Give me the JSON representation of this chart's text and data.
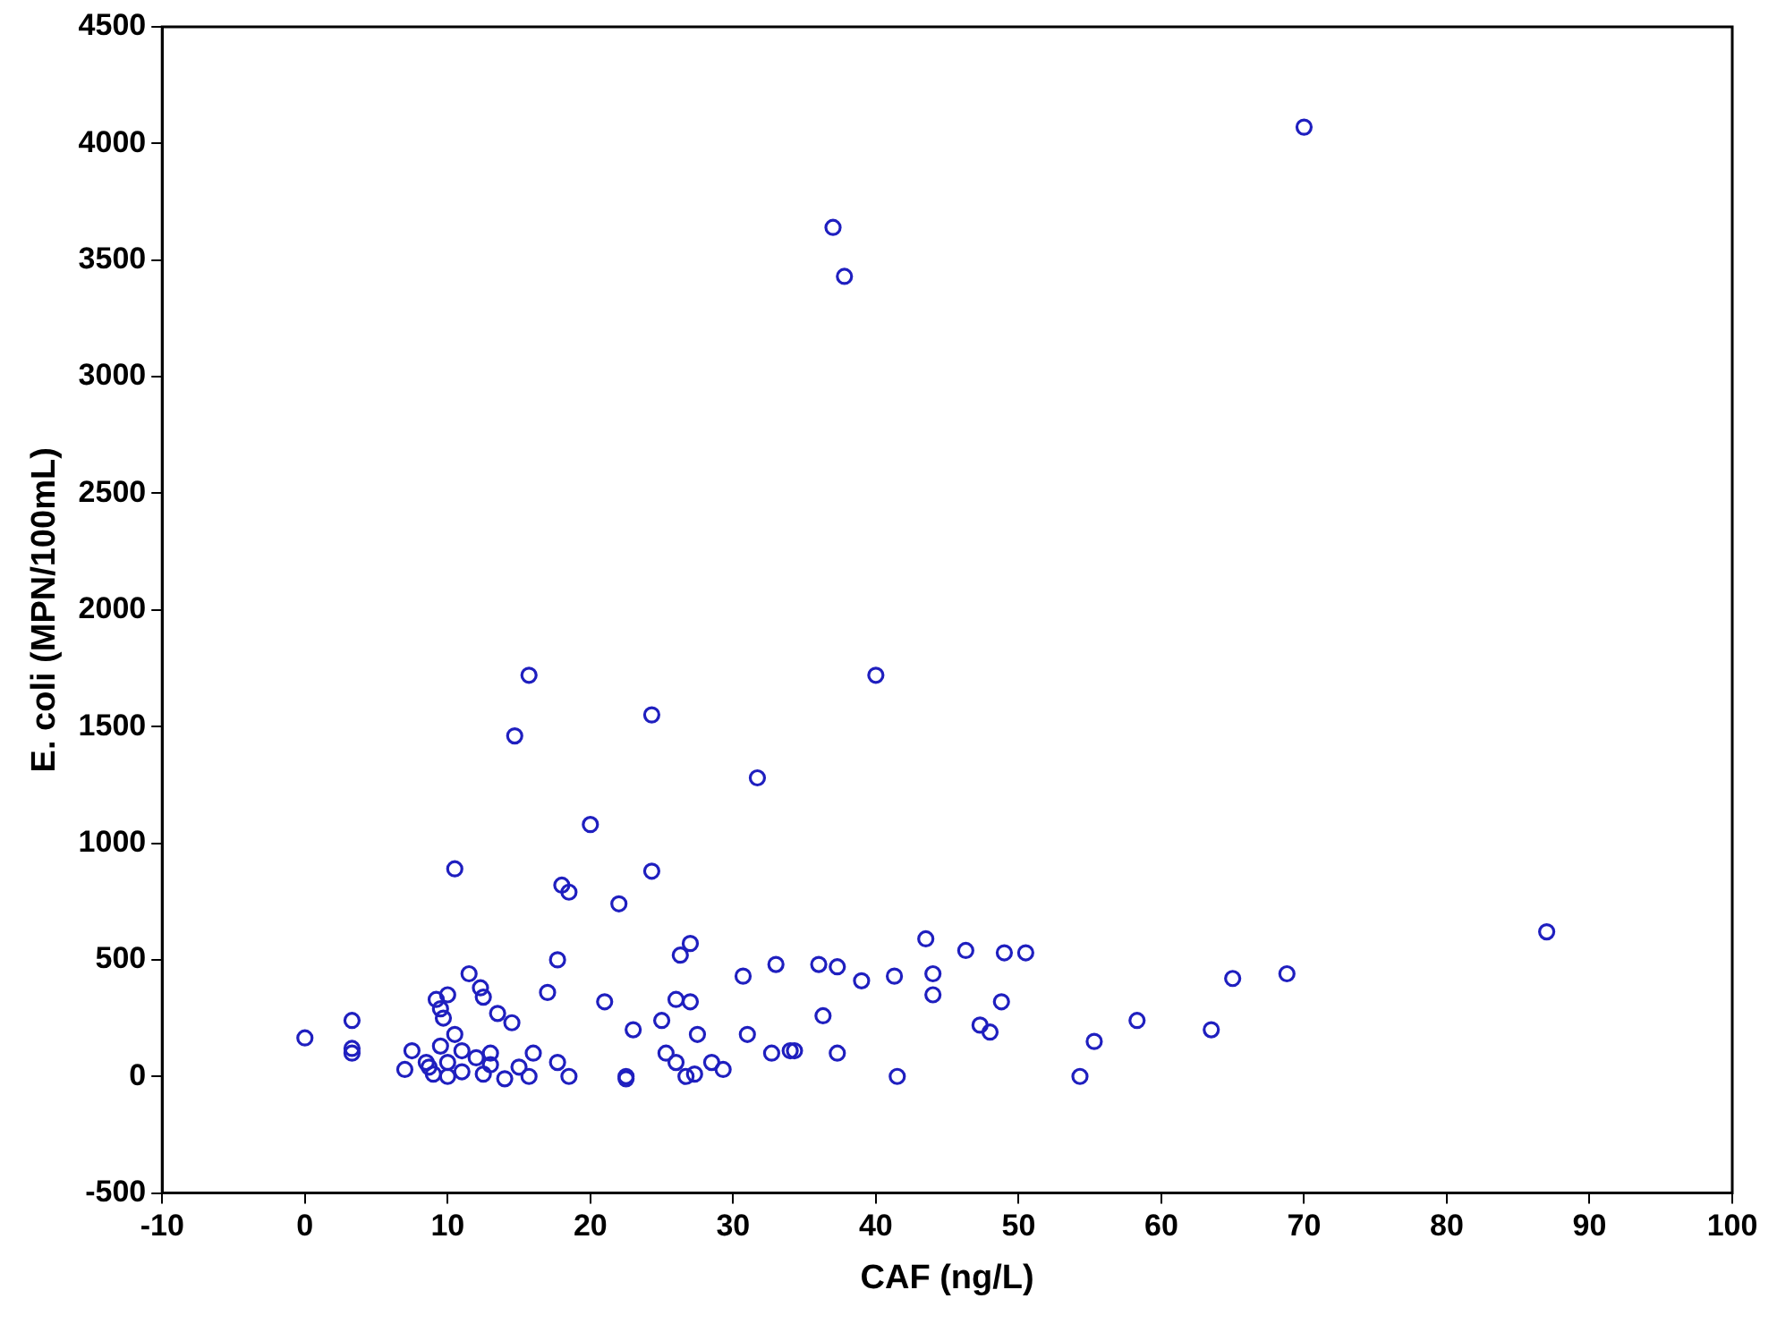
{
  "chart_data": {
    "type": "scatter",
    "xlabel": "CAF (ng/L)",
    "ylabel": "E. coli (MPN/100mL)",
    "xlim": [
      -10,
      100
    ],
    "xticks": [
      -10,
      0,
      10,
      20,
      30,
      40,
      50,
      60,
      70,
      80,
      90,
      100
    ],
    "ylim": [
      -500,
      4500
    ],
    "yticks": [
      -500,
      0,
      500,
      1000,
      1500,
      2000,
      2500,
      3000,
      3500,
      4000,
      4500
    ],
    "grid": false,
    "legend": false,
    "marker": "circle",
    "series": [
      {
        "color": "#1f1fbf",
        "x": [
          0,
          3.3,
          3.3,
          3.3,
          7,
          7.5,
          8.5,
          8.7,
          9,
          9.2,
          9.5,
          9.7,
          9.5,
          10,
          10,
          10,
          10.5,
          10.5,
          11,
          11,
          11.5,
          12,
          12.3,
          12.5,
          12.5,
          13,
          13,
          13.5,
          14,
          14.5,
          14.7,
          15,
          15.7,
          15.7,
          16,
          17,
          17.7,
          17.7,
          18,
          18.5,
          18.5,
          20,
          21,
          22,
          22.5,
          22.5,
          23,
          24.3,
          24.3,
          25,
          25.3,
          26,
          26,
          26.3,
          26.7,
          27,
          27,
          27.3,
          27.5,
          28.5,
          29.3,
          30.7,
          31,
          31.7,
          32.7,
          33,
          34,
          34.3,
          36,
          36.3,
          37,
          37.3,
          37.3,
          37.8,
          39,
          40,
          41.3,
          41.5,
          43.5,
          44,
          44,
          46.3,
          47.3,
          48,
          48.8,
          49,
          50.5,
          54.3,
          55.3,
          58.3,
          63.5,
          65,
          68.8,
          70,
          87
        ],
        "values": [
          165,
          240,
          120,
          100,
          30,
          110,
          60,
          40,
          10,
          330,
          290,
          250,
          130,
          350,
          60,
          0,
          890,
          180,
          110,
          20,
          440,
          80,
          380,
          340,
          10,
          100,
          50,
          270,
          -10,
          230,
          1460,
          40,
          1720,
          0,
          100,
          360,
          500,
          60,
          820,
          790,
          0,
          1080,
          320,
          740,
          0,
          -10,
          200,
          1550,
          880,
          240,
          100,
          330,
          60,
          520,
          0,
          320,
          570,
          10,
          180,
          60,
          30,
          430,
          180,
          1280,
          100,
          480,
          110,
          110,
          480,
          260,
          3640,
          470,
          100,
          3430,
          410,
          1720,
          430,
          0,
          590,
          440,
          350,
          540,
          220,
          190,
          320,
          530,
          530,
          0,
          150,
          240,
          200,
          420,
          440,
          4070,
          620
        ]
      }
    ]
  }
}
